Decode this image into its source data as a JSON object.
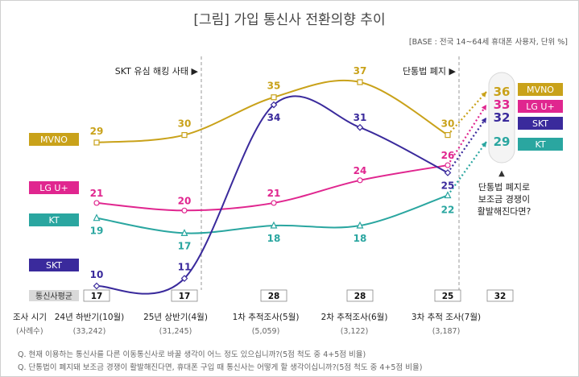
{
  "title": "[그림] 가입 통신사 전환의향 추이",
  "base_note": "[BASE : 전국 14~64세 휴대폰 사용자, 단위 %]",
  "events": [
    {
      "label": "SKT 유심 해킹 사태 ▶"
    },
    {
      "label": "단통법 폐지 ▶"
    }
  ],
  "callout": {
    "lines": [
      "단통법 폐지로",
      "보조금 경쟁이",
      "활발해진다면?"
    ],
    "marker": "▲"
  },
  "colors": {
    "MVNO": "#c9a21a",
    "LG U+": "#e0268f",
    "SKT": "#3a2a9c",
    "KT": "#2aa6a0"
  },
  "chart_data": {
    "type": "line",
    "categories": [
      "24년 하반기(10월)",
      "25년 상반기(4월)",
      "1차 추적조사(5월)",
      "2차 추적조사(6월)",
      "3차 추적 조사(7월)"
    ],
    "sample_sizes": [
      "(33,242)",
      "(31,245)",
      "(5,059)",
      "(3,122)",
      "(3,187)"
    ],
    "series": [
      {
        "name": "MVNO",
        "values": [
          29,
          30,
          35,
          37,
          30
        ],
        "projected": 36
      },
      {
        "name": "LG U+",
        "values": [
          21,
          20,
          21,
          24,
          26
        ],
        "projected": 33
      },
      {
        "name": "KT",
        "values": [
          19,
          17,
          18,
          18,
          22
        ],
        "projected": 29
      },
      {
        "name": "SKT",
        "values": [
          10,
          11,
          34,
          31,
          25
        ],
        "projected": 32
      }
    ],
    "average": {
      "label": "통신사평균",
      "values": [
        17,
        17,
        28,
        28,
        25
      ],
      "projected": 32
    },
    "row_labels": {
      "period": "조사 시기",
      "sample": "(사례수)"
    }
  },
  "questions": [
    "Q. 현재 이용하는 통신사를 다른 이동통신사로 바꿀 생각이 어느 정도 있으십니까?(5점 척도 중 4+5점 비율)",
    "Q. 단통법이 폐지돼 보조금 경쟁이 활발해진다면, 휴대폰 구입 때 통신사는 어떻게 할 생각이십니까?(5점 척도 중 4+5점 비율)"
  ]
}
